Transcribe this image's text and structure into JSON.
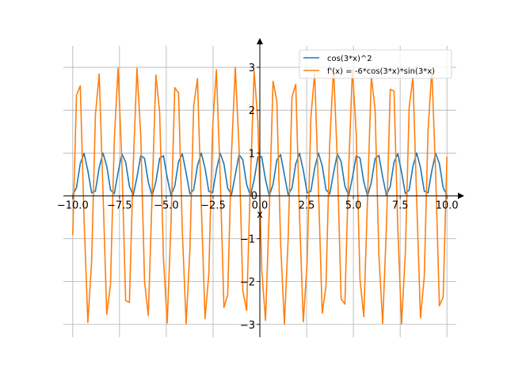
{
  "chart_data": {
    "type": "line",
    "title": "",
    "xlabel": "x",
    "ylabel": "",
    "xlim": [
      -10.5,
      10.5
    ],
    "ylim": [
      -3.3,
      3.5
    ],
    "grid": true,
    "legend_position": "top-right",
    "x_ticks": [
      -10.0,
      -7.5,
      -5.0,
      -2.5,
      0.0,
      2.5,
      5.0,
      7.5,
      10.0
    ],
    "x_tick_labels": [
      "−10.0",
      "−7.5",
      "−5.0",
      "−2.5",
      "0.0",
      "2.5",
      "5.0",
      "7.5",
      "10.0"
    ],
    "y_ticks": [
      -3,
      -2,
      -1,
      0,
      1,
      2,
      3
    ],
    "y_tick_labels": [
      "−3",
      "−2",
      "−1",
      "0",
      "1",
      "2",
      "3"
    ],
    "sampling": {
      "x_start": -10,
      "x_end": 10,
      "num_points": 100
    },
    "series": [
      {
        "name": "cos(3*x)^2",
        "color": "#1f77b4",
        "expression": "cos(3*x)^2"
      },
      {
        "name": "f'(x) = -6*cos(3*x)*sin(3*x)",
        "color": "#ff7f0e",
        "expression": "-6*cos(3*x)*sin(3*x)"
      }
    ]
  }
}
